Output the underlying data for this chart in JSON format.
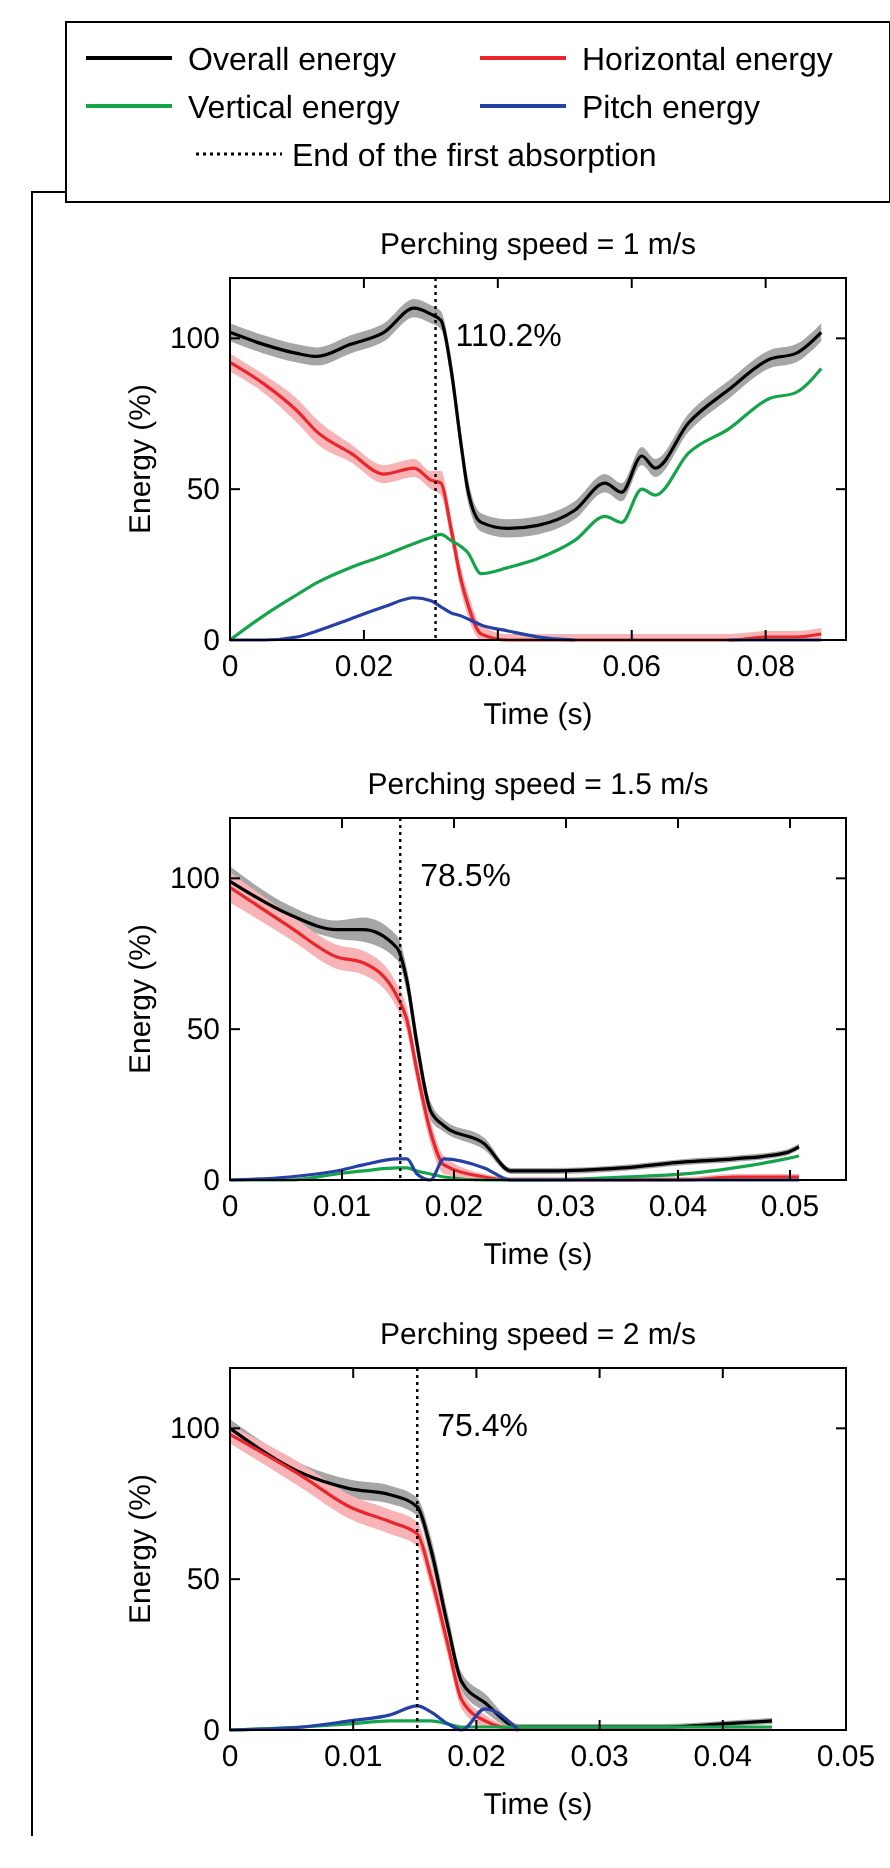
{
  "chart_data": [
    {
      "type": "line",
      "title": "Perching speed = 1 m/s",
      "xlabel": "Time (s)",
      "ylabel": "Energy (%)",
      "xlim": [
        0,
        0.092
      ],
      "ylim": [
        0,
        120
      ],
      "xticks": [
        0,
        0.02,
        0.04,
        0.06,
        0.08
      ],
      "yticks": [
        0,
        50,
        100
      ],
      "grid": false,
      "legend": "top",
      "line_style": "solid",
      "marker": "none",
      "x": [
        0,
        0.005,
        0.01,
        0.013,
        0.018,
        0.023,
        0.0275,
        0.03,
        0.0315,
        0.033,
        0.0345,
        0.0355,
        0.0375,
        0.0415,
        0.046,
        0.0515,
        0.056,
        0.0585,
        0.0615,
        0.0635,
        0.0685,
        0.0745,
        0.0805,
        0.0845,
        0.0883
      ],
      "series": [
        {
          "name": "Overall energy",
          "color": "#000000",
          "values": [
            102,
            98,
            95,
            94,
            98,
            102,
            110,
            108,
            106,
            90,
            65,
            50,
            39,
            37,
            38,
            43,
            52,
            49,
            61,
            57,
            72,
            83,
            93,
            95,
            102
          ],
          "lower": [
            99,
            95,
            92,
            91,
            95,
            99,
            107,
            105,
            103,
            86,
            61,
            46,
            36,
            34,
            35,
            40,
            49,
            46,
            58,
            54,
            69,
            80,
            90,
            92,
            99
          ],
          "upper": [
            105,
            101,
            98,
            97,
            101,
            105,
            113,
            111,
            109,
            94,
            69,
            54,
            42,
            40,
            41,
            46,
            55,
            52,
            64,
            60,
            75,
            86,
            96,
            98,
            105
          ]
        },
        {
          "name": "Horizontal energy",
          "color": "#e8262b",
          "values": [
            92,
            85,
            76,
            69,
            62,
            55,
            57,
            53,
            52,
            37,
            20,
            12,
            2,
            0,
            0,
            0,
            0,
            0,
            0,
            0,
            0,
            0,
            1,
            1,
            2
          ],
          "lower": [
            89,
            82,
            72,
            65,
            59,
            52,
            54,
            50,
            48,
            33,
            16,
            8,
            0,
            0,
            0,
            0,
            0,
            0,
            0,
            0,
            0,
            0,
            0,
            0,
            0
          ],
          "upper": [
            95,
            88,
            80,
            73,
            65,
            58,
            60,
            56,
            56,
            41,
            24,
            16,
            5,
            2,
            2,
            2,
            2,
            2,
            2,
            2,
            2,
            2,
            3,
            3,
            4
          ]
        },
        {
          "name": "Vertical energy",
          "color": "#14a54b",
          "values": [
            0,
            8,
            15,
            19,
            24,
            28,
            32,
            34,
            35,
            33,
            31,
            29,
            22,
            24,
            27,
            33,
            41,
            39,
            50,
            48,
            62,
            70,
            80,
            82,
            90
          ]
        },
        {
          "name": "Pitch energy",
          "color": "#2541a6",
          "values": [
            0,
            0,
            1,
            3,
            7,
            11,
            14,
            13,
            11,
            9,
            8,
            7,
            5,
            3,
            1,
            0,
            null,
            null,
            null,
            null,
            null,
            0,
            0,
            0,
            0
          ]
        }
      ],
      "ref_lines": [
        {
          "axis": "x",
          "value": 0.0307,
          "label": "End of the first absorption",
          "line_style": "dotted",
          "color": "#000000"
        }
      ],
      "annotations": [
        "110.2%"
      ]
    },
    {
      "type": "line",
      "title": "Perching speed = 1.5 m/s",
      "xlabel": "Time (s)",
      "ylabel": "Energy (%)",
      "xlim": [
        0,
        0.055
      ],
      "ylim": [
        0,
        120
      ],
      "xticks": [
        0,
        0.01,
        0.02,
        0.03,
        0.04,
        0.05
      ],
      "yticks": [
        0,
        50,
        100
      ],
      "grid": false,
      "legend": false,
      "line_style": "solid",
      "marker": "none",
      "x": [
        0,
        0.0053,
        0.0095,
        0.0119,
        0.0149,
        0.0158,
        0.0167,
        0.0179,
        0.0191,
        0.0227,
        0.0251,
        0.0287,
        0.035,
        0.0406,
        0.045,
        0.0496,
        0.0508
      ],
      "series": [
        {
          "color": "#000000",
          "values": [
            99,
            88,
            83,
            83,
            77,
            66,
            45,
            23,
            18,
            12,
            3,
            3,
            4,
            6,
            7,
            9,
            11
          ],
          "lower": [
            94,
            85,
            80,
            79,
            73,
            62,
            41,
            20,
            16,
            10,
            2,
            2,
            3,
            5,
            6,
            8,
            10
          ],
          "upper": [
            104,
            91,
            86,
            87,
            81,
            70,
            49,
            26,
            20,
            14,
            4,
            4,
            5,
            7,
            8,
            10,
            12
          ]
        },
        {
          "color": "#e8262b",
          "values": [
            97,
            84,
            74,
            72,
            61,
            53,
            36,
            16,
            5,
            1,
            0,
            0,
            0,
            0,
            1,
            1,
            1
          ],
          "lower": [
            92,
            80,
            70,
            68,
            57,
            49,
            32,
            12,
            2,
            0,
            0,
            0,
            0,
            0,
            0,
            0,
            0
          ],
          "upper": [
            102,
            88,
            78,
            76,
            65,
            57,
            40,
            20,
            8,
            2,
            1,
            1,
            1,
            1,
            2,
            2,
            2
          ]
        },
        {
          "color": "#14a54b",
          "values": [
            0,
            0,
            2,
            3,
            4,
            4,
            3,
            2,
            1,
            0,
            0,
            0,
            1,
            2,
            4,
            7,
            8
          ]
        },
        {
          "color": "#2541a6",
          "values": [
            0,
            1,
            3,
            5,
            7,
            7,
            2,
            0,
            7,
            4,
            0,
            0,
            0,
            0,
            0,
            0,
            0
          ]
        }
      ],
      "ref_lines": [
        {
          "axis": "x",
          "value": 0.0152,
          "line_style": "dotted",
          "color": "#000000"
        }
      ],
      "annotations": [
        "78.5%"
      ]
    },
    {
      "type": "line",
      "title": "Perching speed = 2 m/s",
      "xlabel": "Time (s)",
      "ylabel": "Energy (%)",
      "xlim": [
        0,
        0.05
      ],
      "ylim": [
        0,
        120
      ],
      "xticks": [
        0,
        0.01,
        0.02,
        0.03,
        0.04,
        0.05
      ],
      "yticks": [
        0,
        50,
        100
      ],
      "grid": false,
      "legend": false,
      "line_style": "solid",
      "marker": "none",
      "x": [
        0,
        0.0059,
        0.0097,
        0.013,
        0.0152,
        0.0163,
        0.0177,
        0.0188,
        0.0207,
        0.0234,
        0.03,
        0.035,
        0.04,
        0.044
      ],
      "series": [
        {
          "color": "#000000",
          "values": [
            100,
            85,
            80,
            78,
            74,
            60,
            34,
            16,
            9,
            1,
            1,
            1,
            2,
            3
          ],
          "lower": [
            97,
            82,
            77,
            75,
            71,
            56,
            30,
            13,
            6,
            0,
            0,
            0,
            1,
            2
          ],
          "upper": [
            103,
            88,
            83,
            81,
            77,
            64,
            38,
            19,
            12,
            2,
            2,
            2,
            3,
            4
          ]
        },
        {
          "color": "#e8262b",
          "values": [
            98,
            84,
            74,
            69,
            65,
            51,
            28,
            10,
            3,
            0,
            null,
            null,
            null,
            null
          ],
          "lower": [
            95,
            80,
            70,
            65,
            61,
            47,
            24,
            7,
            1,
            0,
            0,
            0,
            0,
            0
          ],
          "upper": [
            101,
            88,
            78,
            73,
            69,
            55,
            32,
            13,
            5,
            1,
            1,
            1,
            1,
            1
          ]
        },
        {
          "color": "#14a54b",
          "values": [
            0,
            1,
            2,
            3,
            3,
            3,
            2,
            1,
            1,
            1,
            1,
            1,
            1,
            1
          ]
        },
        {
          "color": "#2541a6",
          "values": [
            0,
            1,
            3,
            5,
            8,
            6,
            2,
            0,
            7,
            0,
            null,
            null,
            null,
            null
          ]
        }
      ],
      "ref_lines": [
        {
          "axis": "x",
          "value": 0.0152,
          "line_style": "dotted",
          "color": "#000000"
        }
      ],
      "annotations": [
        "75.4%"
      ]
    }
  ]
}
